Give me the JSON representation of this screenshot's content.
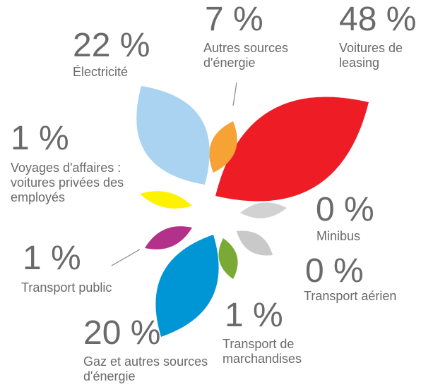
{
  "chart_data": {
    "type": "flower",
    "categories": [
      "Électricité",
      "Autres sources d'énergie",
      "Voitures de leasing",
      "Voyages d'affaires : voitures privées des employés",
      "Minibus",
      "Transport public",
      "Transport aérien",
      "Transport de marchandises",
      "Gaz et autres sources d'énergie"
    ],
    "values": [
      22,
      7,
      48,
      1,
      0,
      1,
      0,
      1,
      20
    ],
    "value_labels": [
      "22 %",
      "7 %",
      "48 %",
      "1 %",
      "0 %",
      "1 %",
      "0 %",
      "1 %",
      "20 %"
    ],
    "colors": [
      "#a9d3f1",
      "#f6a234",
      "#ee1c25",
      "#fff200",
      "#d2d2d2",
      "#b3318b",
      "#c9c9c9",
      "#7aa935",
      "#0096d6"
    ]
  }
}
